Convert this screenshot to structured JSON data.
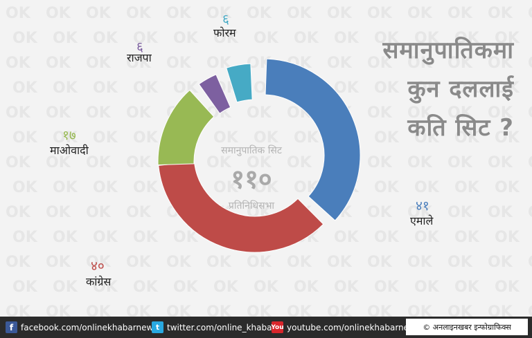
{
  "headline": [
    "समानुपातिकमा",
    "कुन दललाई",
    "कति सिट ?"
  ],
  "center": {
    "line1": "समानुपातिक सिट",
    "total": "११०",
    "line2": "प्रतिनिधिसभा"
  },
  "chart_data": {
    "type": "donut",
    "total": 110,
    "segments": [
      {
        "name": "एमाले",
        "value": 41,
        "label": "४१",
        "color": "#4a7ebb"
      },
      {
        "name": "कांग्रेस",
        "value": 40,
        "label": "४०",
        "color": "#be4b48"
      },
      {
        "name": "माओवादी",
        "value": 17,
        "label": "१७",
        "color": "#98b954"
      },
      {
        "name": "राजपा",
        "value": 6,
        "label": "६",
        "color": "#7d60a0"
      },
      {
        "name": "फोरम",
        "value": 6,
        "label": "६",
        "color": "#46aac5"
      }
    ]
  },
  "footer": {
    "facebook_icon": "f",
    "facebook": "facebook.com/onlinekhabarnews/",
    "twitter_icon": "t",
    "twitter": "twitter.com/online_khabar",
    "youtube_icon": "You",
    "youtube": "youtube.com/onlinekhabarnews",
    "credit": "© अनलाइनखबर इन्फोग्राफिक्स"
  }
}
